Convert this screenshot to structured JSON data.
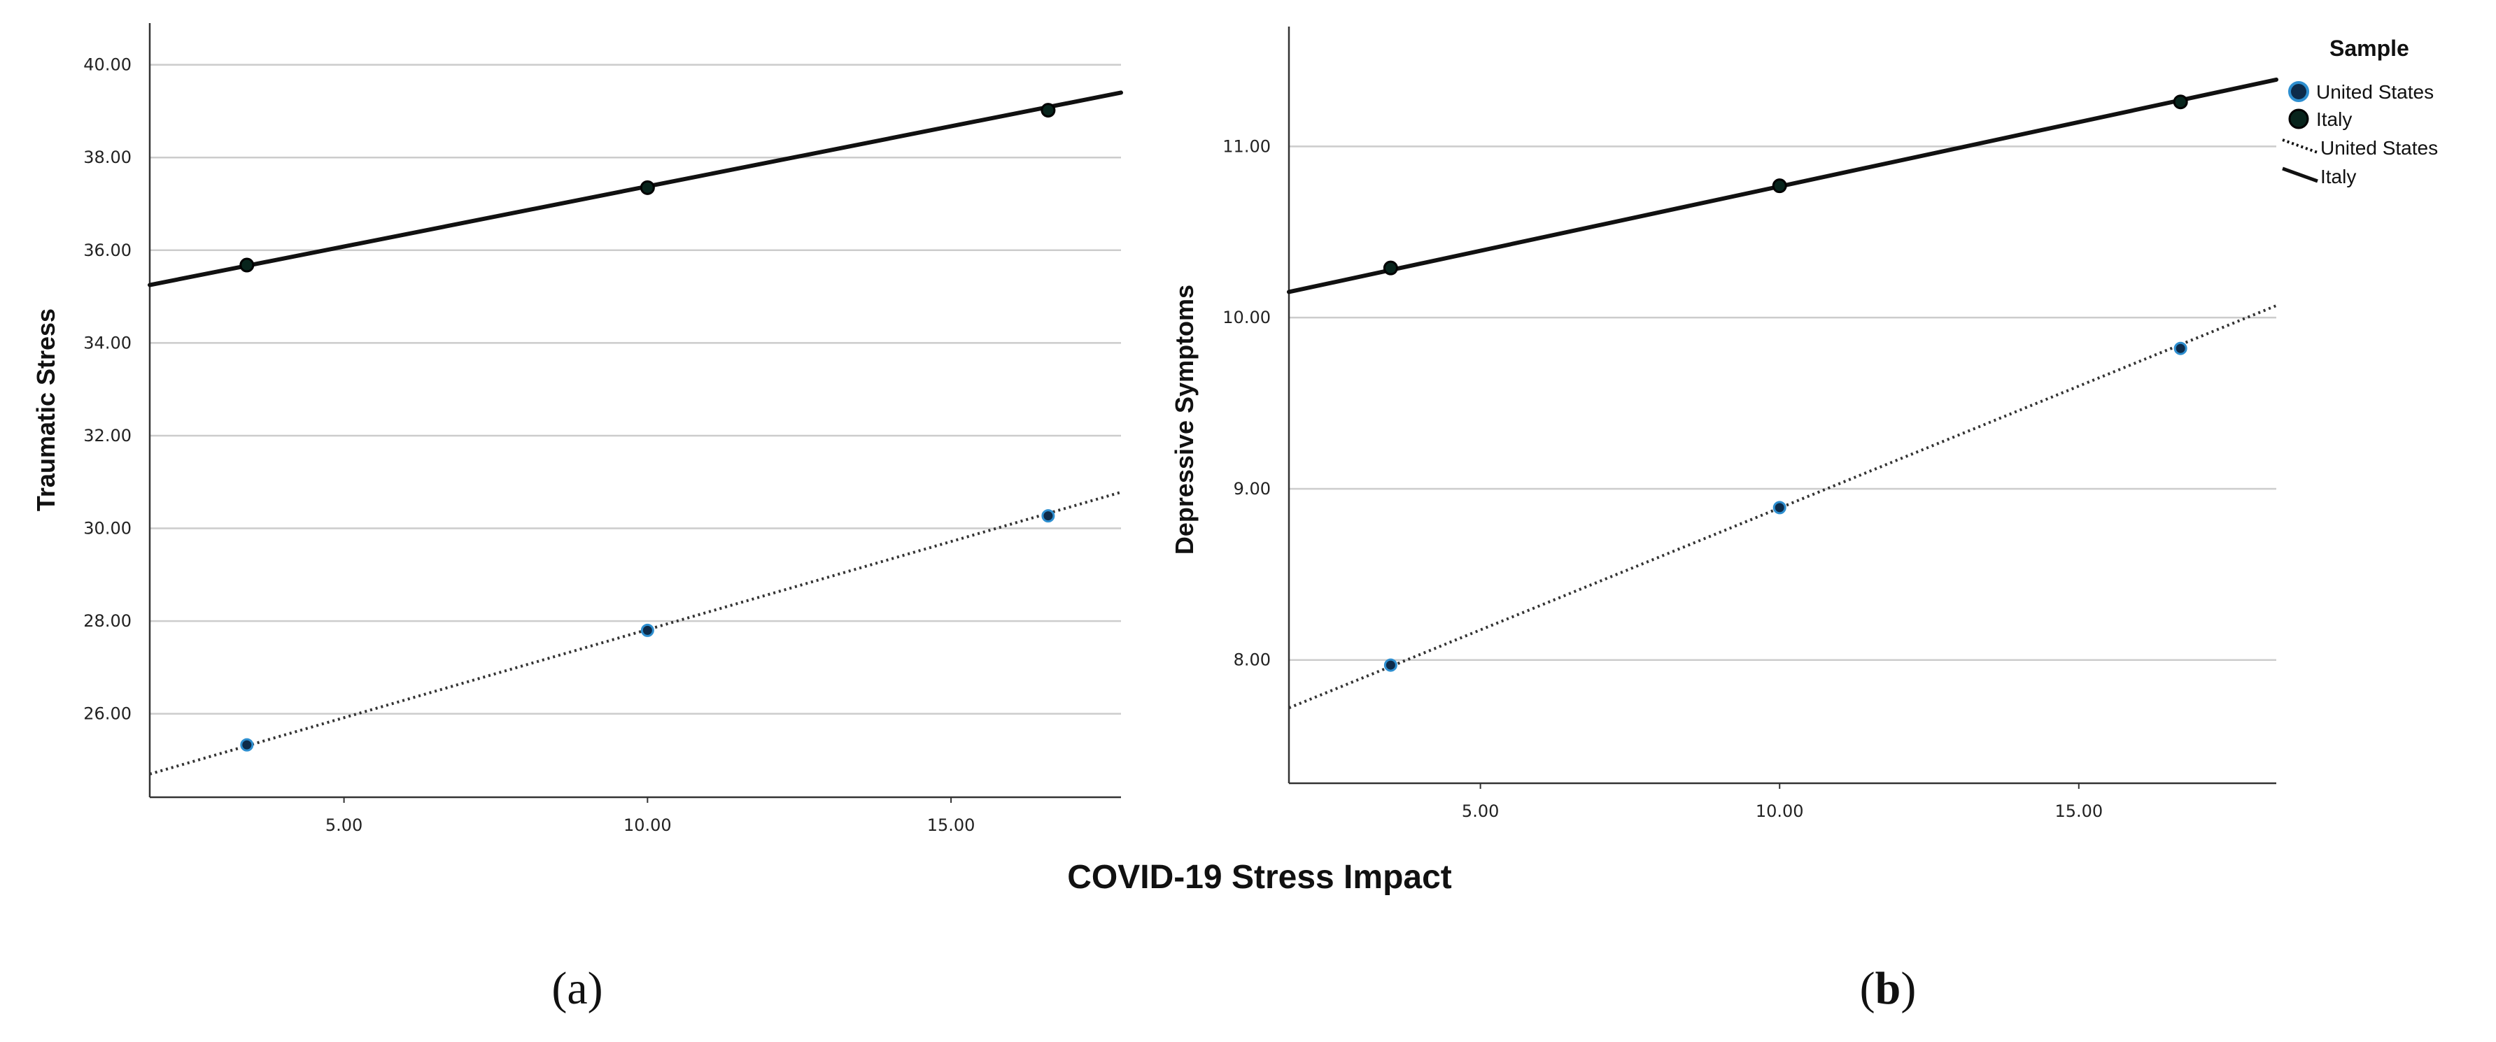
{
  "figure": {
    "shared_xlabel": "COVID-19 Stress Impact",
    "legend": {
      "title": "Sample",
      "markers": [
        {
          "label": "United States",
          "fill": "#0d2b4a",
          "stroke": "#2e8fd0"
        },
        {
          "label": "Italy",
          "fill": "#08241c",
          "stroke": "#000000"
        }
      ],
      "lines": [
        {
          "label": "United States",
          "style": "dotted"
        },
        {
          "label": "Italy",
          "style": "solid"
        }
      ]
    }
  },
  "chart_data": [
    {
      "type": "line",
      "panel_label": "(a)",
      "panel_letter": "a",
      "paren_open": "(",
      "paren_close": ")",
      "title": "",
      "xlabel": "COVID-19 Stress Impact",
      "ylabel": "Traumatic Stress",
      "xlim": [
        1.8,
        17.8
      ],
      "ylim": [
        24.2,
        40.9
      ],
      "xticks": [
        5,
        10,
        15
      ],
      "xtick_labels": [
        "5.00",
        "10.00",
        "15.00"
      ],
      "yticks": [
        26,
        28,
        30,
        32,
        34,
        36,
        38,
        40
      ],
      "ytick_labels": [
        "26.00",
        "28.00",
        "30.00",
        "32.00",
        "34.00",
        "36.00",
        "38.00",
        "40.00"
      ],
      "grid": "horizontal",
      "series": [
        {
          "name": "Italy",
          "line_style": "solid",
          "x": [
            3.4,
            10.0,
            16.6
          ],
          "y": [
            35.68,
            37.35,
            39.02
          ],
          "fit_range": [
            1.8,
            17.8
          ],
          "fit_y": [
            35.25,
            39.4
          ]
        },
        {
          "name": "United States",
          "line_style": "dotted",
          "x": [
            3.4,
            10.0,
            16.6
          ],
          "y": [
            25.33,
            27.8,
            30.27
          ],
          "fit_range": [
            1.8,
            17.8
          ],
          "fit_y": [
            24.7,
            30.78
          ]
        }
      ]
    },
    {
      "type": "line",
      "panel_label": "(b)",
      "panel_letter": "b",
      "paren_open": "(",
      "paren_close": ")",
      "title": "",
      "xlabel": "COVID-19 Stress Impact",
      "ylabel": "Depressive Symptoms",
      "xlim": [
        1.8,
        18.3
      ],
      "ylim": [
        7.28,
        11.7
      ],
      "xticks": [
        5,
        10,
        15
      ],
      "xtick_labels": [
        "5.00",
        "10.00",
        "15.00"
      ],
      "yticks": [
        8,
        9,
        10,
        11
      ],
      "ytick_labels": [
        "8.00",
        "9.00",
        "10.00",
        "11.00"
      ],
      "grid": "horizontal",
      "series": [
        {
          "name": "Italy",
          "line_style": "solid",
          "x": [
            3.5,
            10.0,
            16.7
          ],
          "y": [
            10.29,
            10.77,
            11.26
          ],
          "fit_range": [
            1.8,
            18.3
          ],
          "fit_y": [
            10.15,
            11.39
          ]
        },
        {
          "name": "United States",
          "line_style": "dotted",
          "x": [
            3.5,
            10.0,
            16.7
          ],
          "y": [
            7.97,
            8.89,
            9.82
          ],
          "fit_range": [
            1.8,
            18.3
          ],
          "fit_y": [
            7.72,
            10.07
          ]
        }
      ]
    }
  ]
}
